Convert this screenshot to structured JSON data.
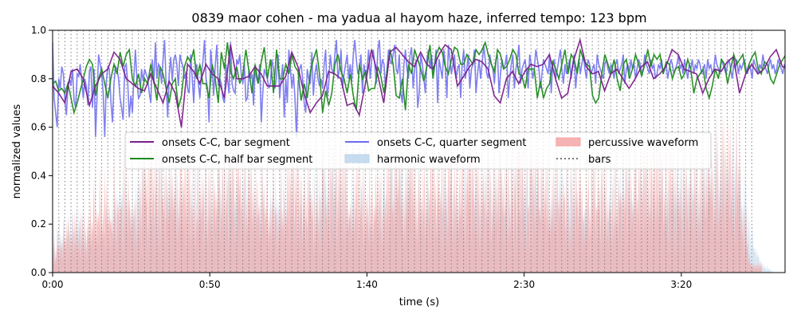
{
  "chart_data": {
    "type": "line",
    "title": "0839 maor cohen - ma yadua al hayom haze, inferred tempo: 123 bpm",
    "xlabel": "time (s)",
    "ylabel": "normalized values",
    "xlim": [
      0,
      233
    ],
    "ylim": [
      0.0,
      1.0
    ],
    "x_ticks": [
      0,
      50,
      100,
      150,
      200
    ],
    "x_tick_labels": [
      "0:00",
      "0:50",
      "1:40",
      "2:30",
      "3:20"
    ],
    "y_ticks": [
      0.0,
      0.2,
      0.4,
      0.6,
      0.8,
      1.0
    ],
    "y_tick_labels": [
      "0.0",
      "0.2",
      "0.4",
      "0.6",
      "0.8",
      "1.0"
    ],
    "grid": false,
    "legend_position": "center",
    "legend": [
      {
        "label": "onsets C-C, bar segment",
        "style": "line",
        "color": "#7b1f8a"
      },
      {
        "label": "onsets C-C, quarter segment",
        "style": "line",
        "color": "#6a6af0"
      },
      {
        "label": "percussive waveform",
        "style": "patch",
        "color": "#f4a0a0"
      },
      {
        "label": "onsets C-C, half bar segment",
        "style": "line",
        "color": "#1f8a1f"
      },
      {
        "label": "harmonic waveform",
        "style": "patch",
        "color": "#b9d3ea"
      },
      {
        "label": "bars",
        "style": "dotted",
        "color": "#777777"
      }
    ],
    "bars": {
      "start": 0,
      "interval": 1.951,
      "end": 223
    },
    "series": [
      {
        "name": "onsets C-C, bar segment",
        "color": "#7b1f8a",
        "x_start": 0,
        "x_step": 1.951,
        "values": [
          0.77,
          0.74,
          0.7,
          0.83,
          0.84,
          0.8,
          0.69,
          0.77,
          0.82,
          0.84,
          0.91,
          0.88,
          0.8,
          0.78,
          0.76,
          0.75,
          0.82,
          0.76,
          0.7,
          0.79,
          0.74,
          0.6,
          0.86,
          0.83,
          0.78,
          0.86,
          0.82,
          0.8,
          0.72,
          0.94,
          0.8,
          0.8,
          0.81,
          0.85,
          0.82,
          0.77,
          0.77,
          0.77,
          0.81,
          0.91,
          0.85,
          0.74,
          0.66,
          0.7,
          0.73,
          0.83,
          0.82,
          0.8,
          0.69,
          0.7,
          0.65,
          0.78,
          0.92,
          0.82,
          0.7,
          0.91,
          0.93,
          0.9,
          0.87,
          0.85,
          0.91,
          0.86,
          0.84,
          0.9,
          0.94,
          0.92,
          0.77,
          0.81,
          0.85,
          0.88,
          0.87,
          0.84,
          0.73,
          0.7,
          0.8,
          0.83,
          0.78,
          0.83,
          0.86,
          0.85,
          0.86,
          0.9,
          0.8,
          0.72,
          0.74,
          0.88,
          0.96,
          0.85,
          0.82,
          0.83,
          0.75,
          0.82,
          0.84,
          0.8,
          0.76,
          0.8,
          0.85,
          0.87,
          0.8,
          0.82,
          0.85,
          0.92,
          0.9,
          0.84,
          0.83,
          0.82,
          0.74,
          0.8,
          0.84,
          0.83,
          0.87,
          0.89,
          0.74,
          0.82,
          0.86,
          0.82,
          0.84,
          0.89,
          0.92,
          0.85,
          0.84,
          0.86,
          0.81,
          0.76,
          0.85,
          0.86,
          0.87,
          0.88,
          0.81,
          0.84,
          0.9,
          0.86,
          0.85,
          0.81,
          0.79,
          0.8,
          0.82,
          0.77,
          0.72,
          0.76,
          0.8,
          0.82,
          0.83,
          0.8,
          0.81,
          0.79,
          0.82,
          0.83
        ]
      },
      {
        "name": "onsets C-C, half bar segment",
        "color": "#1f8a1f",
        "x_start": 0,
        "x_step": 0.976,
        "values": [
          0.78,
          0.79,
          0.75,
          0.76,
          0.74,
          0.78,
          0.72,
          0.66,
          0.7,
          0.75,
          0.8,
          0.85,
          0.88,
          0.86,
          0.73,
          0.8,
          0.84,
          0.78,
          0.72,
          0.8,
          0.86,
          0.82,
          0.91,
          0.85,
          0.9,
          0.92,
          0.8,
          0.77,
          0.82,
          0.74,
          0.8,
          0.78,
          0.86,
          0.79,
          0.71,
          0.85,
          0.82,
          0.76,
          0.7,
          0.78,
          0.8,
          0.68,
          0.73,
          0.85,
          0.89,
          0.87,
          0.92,
          0.8,
          0.86,
          0.78,
          0.78,
          0.72,
          0.86,
          0.8,
          0.7,
          0.91,
          0.84,
          0.95,
          0.83,
          0.8,
          0.85,
          0.78,
          0.82,
          0.92,
          0.83,
          0.74,
          0.86,
          0.78,
          0.87,
          0.93,
          0.8,
          0.88,
          0.74,
          0.92,
          0.8,
          0.8,
          0.86,
          0.82,
          0.9,
          0.85,
          0.83,
          0.71,
          0.78,
          0.72,
          0.83,
          0.88,
          0.92,
          0.82,
          0.66,
          0.75,
          0.69,
          0.74,
          0.86,
          0.9,
          0.83,
          0.8,
          0.74,
          0.82,
          0.73,
          0.67,
          0.86,
          0.8,
          0.83,
          0.75,
          0.76,
          0.76,
          0.85,
          0.81,
          0.74,
          0.83,
          0.92,
          0.86,
          0.73,
          0.72,
          0.8,
          0.67,
          0.86,
          0.82,
          0.92,
          0.88,
          0.84,
          0.79,
          0.85,
          0.94,
          0.8,
          0.9,
          0.93,
          0.91,
          0.85,
          0.82,
          0.88,
          0.93,
          0.92,
          0.86,
          0.86,
          0.9,
          0.88,
          0.86,
          0.92,
          0.9,
          0.92,
          0.95,
          0.9,
          0.86,
          0.83,
          0.92,
          0.9,
          0.84,
          0.85,
          0.88,
          0.92,
          0.9,
          0.82,
          0.81,
          0.76,
          0.84,
          0.84,
          0.84,
          0.72,
          0.79,
          0.72,
          0.76,
          0.78,
          0.87,
          0.84,
          0.8,
          0.86,
          0.92,
          0.82,
          0.9,
          0.88,
          0.82,
          0.92,
          0.88,
          0.86,
          0.85,
          0.73,
          0.7,
          0.72,
          0.82,
          0.9,
          0.86,
          0.82,
          0.88,
          0.8,
          0.75,
          0.86,
          0.88,
          0.8,
          0.84,
          0.9,
          0.86,
          0.81,
          0.86,
          0.92,
          0.85,
          0.9,
          0.88,
          0.9,
          0.82,
          0.87,
          0.86,
          0.8,
          0.84,
          0.85,
          0.8,
          0.82,
          0.88,
          0.84,
          0.74,
          0.8,
          0.82,
          0.84,
          0.76,
          0.72,
          0.77,
          0.84,
          0.8,
          0.88,
          0.86,
          0.78,
          0.84,
          0.9,
          0.86,
          0.88,
          0.9,
          0.82,
          0.86,
          0.89,
          0.91,
          0.84,
          0.82,
          0.87,
          0.86,
          0.8,
          0.78,
          0.82,
          0.86,
          0.88,
          0.9,
          0.84,
          0.86,
          0.91,
          0.83,
          0.86,
          0.8,
          0.81,
          0.86,
          0.84,
          0.85,
          0.88,
          0.87,
          0.8,
          0.86,
          0.84,
          0.86,
          0.82,
          0.84,
          0.88,
          0.9,
          0.81,
          0.78,
          0.8,
          0.88,
          0.84,
          0.82,
          0.84,
          0.86,
          0.85,
          0.82,
          0.79,
          0.84,
          0.86,
          0.8,
          0.82,
          0.86,
          0.85,
          0.83,
          0.8,
          0.78,
          0.84,
          0.82,
          0.79,
          0.82,
          0.8
        ]
      },
      {
        "name": "onsets C-C, quarter segment",
        "color": "#6a6af0",
        "x_start": 0,
        "x_step": 0.488,
        "values": [
          0.95,
          0.72,
          0.66,
          0.6,
          0.8,
          0.76,
          0.85,
          0.82,
          0.71,
          0.65,
          0.77,
          0.8,
          0.77,
          0.84,
          0.71,
          0.68,
          0.82,
          0.81,
          0.86,
          0.79,
          0.72,
          0.8,
          0.77,
          0.69,
          0.83,
          0.85,
          0.68,
          0.84,
          0.56,
          0.73,
          0.9,
          0.86,
          0.82,
          0.74,
          0.56,
          0.79,
          0.85,
          0.84,
          0.71,
          0.62,
          0.78,
          0.85,
          0.84,
          0.8,
          0.72,
          0.68,
          0.63,
          0.85,
          0.86,
          0.78,
          0.64,
          0.73,
          0.66,
          0.81,
          0.92,
          0.79,
          0.72,
          0.73,
          0.84,
          0.79,
          0.84,
          0.82,
          0.8,
          0.74,
          0.7,
          0.88,
          0.78,
          0.95,
          0.8,
          0.86,
          0.85,
          0.78,
          0.88,
          0.96,
          0.78,
          0.64,
          0.82,
          0.89,
          0.79,
          0.88,
          0.9,
          0.86,
          0.77,
          0.9,
          0.87,
          0.85,
          0.8,
          0.83,
          0.76,
          0.74,
          0.9,
          0.8,
          0.7,
          0.84,
          0.86,
          0.78,
          0.72,
          0.82,
          0.87,
          0.96,
          0.8,
          0.76,
          0.62,
          0.92,
          0.85,
          0.73,
          0.85,
          0.94,
          0.77,
          0.8,
          0.78,
          0.72,
          0.7,
          0.86,
          0.8,
          0.74,
          0.95,
          0.78,
          0.75,
          0.74,
          0.88,
          0.86,
          0.9,
          0.82,
          0.78,
          0.86,
          0.71,
          0.72,
          0.84,
          0.8,
          0.82,
          0.69,
          0.84,
          0.8,
          0.78,
          0.86,
          0.62,
          0.74,
          0.84,
          0.82,
          0.8,
          0.76,
          0.78,
          0.88,
          0.84,
          0.76,
          0.81,
          0.9,
          0.72,
          0.8,
          0.86,
          0.64,
          0.8,
          0.7,
          0.92,
          0.84,
          0.76,
          0.82,
          0.72,
          0.56,
          0.78,
          0.84,
          0.86,
          0.8,
          0.7,
          0.66,
          0.84,
          0.8,
          0.78,
          0.91,
          0.73,
          0.82,
          0.86,
          0.8,
          0.77,
          0.8,
          0.76,
          0.86,
          0.92,
          0.72,
          0.78,
          0.9,
          0.84,
          0.82,
          0.9,
          0.96,
          0.8,
          0.84,
          0.92,
          0.76,
          0.82,
          0.86,
          0.9,
          0.8,
          0.86,
          0.79,
          0.9,
          0.96,
          0.88,
          0.82,
          0.84,
          0.9,
          0.74,
          0.86,
          0.8,
          0.84,
          0.92,
          0.8,
          0.88,
          0.92,
          0.86,
          0.78,
          0.92,
          0.96,
          0.82,
          0.88,
          0.86,
          0.76,
          0.84,
          0.92,
          0.88,
          0.86,
          0.9,
          0.94,
          0.84,
          0.82,
          0.9,
          0.74,
          0.7,
          0.86,
          0.92,
          0.84,
          0.8,
          0.9,
          0.93,
          0.76,
          0.84,
          0.88,
          0.68,
          0.74,
          0.9,
          0.86,
          0.8,
          0.74,
          0.88,
          0.92,
          0.84,
          0.9,
          0.82,
          0.86,
          0.92,
          0.7,
          0.88,
          0.84,
          0.8,
          0.92,
          0.86,
          0.72,
          0.94,
          0.88,
          0.82,
          0.86,
          0.9,
          0.8,
          0.84,
          0.86,
          0.72,
          0.86,
          0.92,
          0.8,
          0.84,
          0.9,
          0.76,
          0.84,
          0.86,
          0.92,
          0.74,
          0.82,
          0.88,
          0.8,
          0.86,
          0.94,
          0.88,
          0.82,
          0.8,
          0.9,
          0.86,
          0.84,
          0.78,
          0.88,
          0.9,
          0.74,
          0.82,
          0.88,
          0.84,
          0.86,
          0.9,
          0.72,
          0.8,
          0.86,
          0.9,
          0.76,
          0.84,
          0.88,
          0.94,
          0.78,
          0.84,
          0.86,
          0.88,
          0.82,
          0.76,
          0.9,
          0.86,
          0.8,
          0.84,
          0.92,
          0.88,
          0.84,
          0.76,
          0.82,
          0.88,
          0.86,
          0.84,
          0.82,
          0.9,
          0.74,
          0.86,
          0.88,
          0.8,
          0.84,
          0.88,
          0.92,
          0.84,
          0.78,
          0.86,
          0.82,
          0.84,
          0.88,
          0.8,
          0.86,
          0.9,
          0.76,
          0.84,
          0.88,
          0.82,
          0.86,
          0.9,
          0.84,
          0.8,
          0.88,
          0.86,
          0.82,
          0.84,
          0.86,
          0.78,
          0.9,
          0.86,
          0.84,
          0.82,
          0.8,
          0.86,
          0.88,
          0.84,
          0.82,
          0.86,
          0.84,
          0.8,
          0.86,
          0.88,
          0.82,
          0.84,
          0.86,
          0.9,
          0.78,
          0.84,
          0.86,
          0.82,
          0.88,
          0.84,
          0.86,
          0.8,
          0.84,
          0.88,
          0.86,
          0.82,
          0.84,
          0.9,
          0.86,
          0.84,
          0.82,
          0.88,
          0.84,
          0.86,
          0.8,
          0.82,
          0.86,
          0.84,
          0.88,
          0.82,
          0.84,
          0.86,
          0.8,
          0.84,
          0.88,
          0.86,
          0.82,
          0.84,
          0.86,
          0.9,
          0.84,
          0.86,
          0.82,
          0.88,
          0.84,
          0.8,
          0.86,
          0.84,
          0.88,
          0.82,
          0.86,
          0.84,
          0.88,
          0.86,
          0.82,
          0.84,
          0.86,
          0.8,
          0.88,
          0.84,
          0.86,
          0.82,
          0.84,
          0.9,
          0.86,
          0.84,
          0.82,
          0.88,
          0.86,
          0.84,
          0.82,
          0.86,
          0.88,
          0.84,
          0.8,
          0.86,
          0.84,
          0.88,
          0.82,
          0.86,
          0.84,
          0.86,
          0.88,
          0.84,
          0.82,
          0.86,
          0.84,
          0.8,
          0.88,
          0.86,
          0.84,
          0.82,
          0.86,
          0.84,
          0.9,
          0.86,
          0.84,
          0.82,
          0.86,
          0.88,
          0.84,
          0.86,
          0.82,
          0.84,
          0.88,
          0.86,
          0.84,
          0.82,
          0.86,
          0.84,
          0.88,
          0.86,
          0.84,
          0.86,
          0.82,
          0.84,
          0.88,
          0.86,
          0.84,
          0.82,
          0.86,
          0.9,
          0.84,
          0.86,
          0.82,
          0.84,
          0.88,
          0.86,
          0.84
        ]
      },
      {
        "name": "percussive waveform",
        "type": "area",
        "color": "#f4a0a0",
        "x_start": 0,
        "x_step": 3.64,
        "envelope": [
          0.15,
          0.3,
          0.34,
          0.36,
          0.53,
          0.44,
          0.6,
          0.52,
          0.67,
          0.7,
          0.64,
          0.66,
          0.61,
          0.62,
          0.58,
          0.61,
          0.66,
          0.68,
          0.62,
          0.55,
          0.56,
          0.66,
          0.6,
          0.62,
          0.68,
          0.68,
          0.55,
          0.6,
          0.56,
          0.6,
          0.64,
          0.69,
          0.62,
          0.66,
          0.6,
          0.64,
          0.7,
          0.68,
          0.62,
          0.6,
          0.66,
          0.68,
          0.6,
          0.57,
          0.64,
          0.62,
          0.58,
          0.56,
          0.6,
          0.58,
          0.66,
          0.64,
          0.62,
          0.66,
          0.6,
          0.62,
          0.64,
          0.68,
          0.7,
          0.72,
          0.7,
          0.06
        ]
      },
      {
        "name": "harmonic waveform",
        "type": "area",
        "color": "#b9d3ea",
        "x_start": 0,
        "x_step": 3.64,
        "envelope": [
          0.22,
          0.28,
          0.3,
          0.26,
          0.34,
          0.38,
          0.45,
          0.52,
          0.48,
          0.55,
          0.5,
          0.52,
          0.48,
          0.5,
          0.46,
          0.52,
          0.56,
          0.58,
          0.52,
          0.48,
          0.5,
          0.54,
          0.48,
          0.5,
          0.56,
          0.6,
          0.48,
          0.5,
          0.46,
          0.52,
          0.54,
          0.58,
          0.52,
          0.55,
          0.5,
          0.54,
          0.58,
          0.56,
          0.52,
          0.5,
          0.55,
          0.58,
          0.52,
          0.48,
          0.54,
          0.52,
          0.5,
          0.46,
          0.52,
          0.5,
          0.56,
          0.55,
          0.54,
          0.6,
          0.56,
          0.58,
          0.62,
          0.66,
          0.7,
          0.72,
          0.7,
          0.3,
          0.06,
          0.0
        ]
      }
    ]
  }
}
